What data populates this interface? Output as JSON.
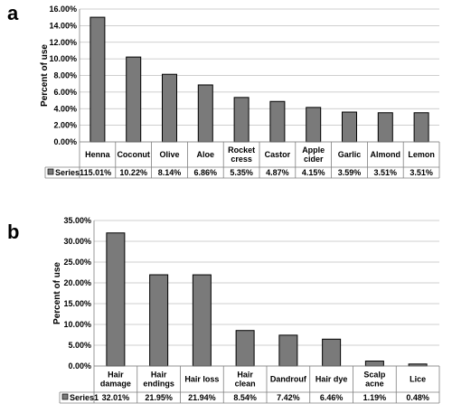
{
  "chart_data": [
    {
      "panel": "a",
      "type": "bar",
      "ylabel": "Percent of use",
      "ylim": [
        0,
        16
      ],
      "yticks": [
        "0.00%",
        "2.00%",
        "4.00%",
        "6.00%",
        "8.00%",
        "10.00%",
        "12.00%",
        "14.00%",
        "16.00%"
      ],
      "tick_values": [
        0,
        2,
        4,
        6,
        8,
        10,
        12,
        14,
        16
      ],
      "categories": [
        [
          "Henna"
        ],
        [
          "Coconut"
        ],
        [
          "Olive"
        ],
        [
          "Aloe"
        ],
        [
          "Rocket",
          "cress"
        ],
        [
          "Castor"
        ],
        [
          "Apple",
          "cider"
        ],
        [
          "Garlic"
        ],
        [
          "Almond"
        ],
        [
          "Lemon"
        ]
      ],
      "series": [
        {
          "name": "Series1",
          "values": [
            15.01,
            10.22,
            8.14,
            6.86,
            5.35,
            4.87,
            4.15,
            3.59,
            3.51,
            3.51
          ],
          "labels": [
            "15.01%",
            "10.22%",
            "8.14%",
            "6.86%",
            "5.35%",
            "4.87%",
            "4.15%",
            "3.59%",
            "3.51%",
            "3.51%"
          ]
        }
      ],
      "grid": true,
      "data_table": true,
      "bar_color": "#7a7a7a"
    },
    {
      "panel": "b",
      "type": "bar",
      "ylabel": "Percent of use",
      "ylim": [
        0,
        35
      ],
      "yticks": [
        "0.00%",
        "5.00%",
        "10.00%",
        "15.00%",
        "20.00%",
        "25.00%",
        "30.00%",
        "35.00%"
      ],
      "tick_values": [
        0,
        5,
        10,
        15,
        20,
        25,
        30,
        35
      ],
      "categories": [
        [
          "Hair",
          "damage"
        ],
        [
          "Hair",
          "endings"
        ],
        [
          "Hair loss"
        ],
        [
          "Hair",
          "clean"
        ],
        [
          "Dandrouf"
        ],
        [
          "Hair dye"
        ],
        [
          "Scalp",
          "acne"
        ],
        [
          "Lice"
        ]
      ],
      "series": [
        {
          "name": "Series1",
          "values": [
            32.01,
            21.95,
            21.94,
            8.54,
            7.42,
            6.46,
            1.19,
            0.48
          ],
          "labels": [
            "32.01%",
            "21.95%",
            "21.94%",
            "8.54%",
            "7.42%",
            "6.46%",
            "1.19%",
            "0.48%"
          ]
        }
      ],
      "grid": true,
      "data_table": true,
      "bar_color": "#7a7a7a"
    }
  ]
}
